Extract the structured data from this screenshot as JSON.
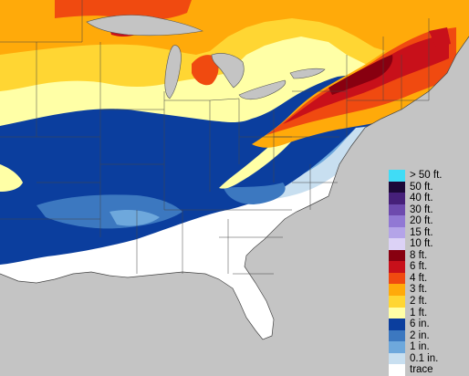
{
  "map": {
    "background_color": "#c4c4c4",
    "palette": {
      "trace": "#ffffff",
      "in_0_1": "#c8dff0",
      "in_1": "#8cbfe3",
      "in_2": "#3c86c8",
      "in_6": "#0b3e9e",
      "ft_1": "#ffffa6",
      "ft_2": "#ffcc11",
      "ft_3": "#ff8c11",
      "ft_4": "#ee3322",
      "ft_6": "#c8101a",
      "ft_8": "#880010",
      "border": "#444444"
    }
  },
  "legend": {
    "items": [
      {
        "label": "> 50 ft.",
        "color": "#40dcf6"
      },
      {
        "label": "50 ft.",
        "color": "#1c0838"
      },
      {
        "label": "40 ft.",
        "color": "#46207a"
      },
      {
        "label": "30 ft.",
        "color": "#6d4aae"
      },
      {
        "label": "20 ft.",
        "color": "#9178d4"
      },
      {
        "label": "15 ft.",
        "color": "#b4a4e8"
      },
      {
        "label": "10 ft.",
        "color": "#dcd2f6"
      },
      {
        "label": "8 ft.",
        "color": "#880010"
      },
      {
        "label": "6 ft.",
        "color": "#c8101a"
      },
      {
        "label": "4 ft.",
        "color": "#f04a10"
      },
      {
        "label": "3 ft.",
        "color": "#ffaa0a"
      },
      {
        "label": "2 ft.",
        "color": "#ffd633"
      },
      {
        "label": "1 ft.",
        "color": "#ffffa6"
      },
      {
        "label": "6 in.",
        "color": "#0b3e9e"
      },
      {
        "label": "2 in.",
        "color": "#3c78c0"
      },
      {
        "label": "1 in.",
        "color": "#6ea8dc"
      },
      {
        "label": "0.1 in.",
        "color": "#c8dff0"
      },
      {
        "label": "trace",
        "color": "#ffffff"
      }
    ]
  }
}
